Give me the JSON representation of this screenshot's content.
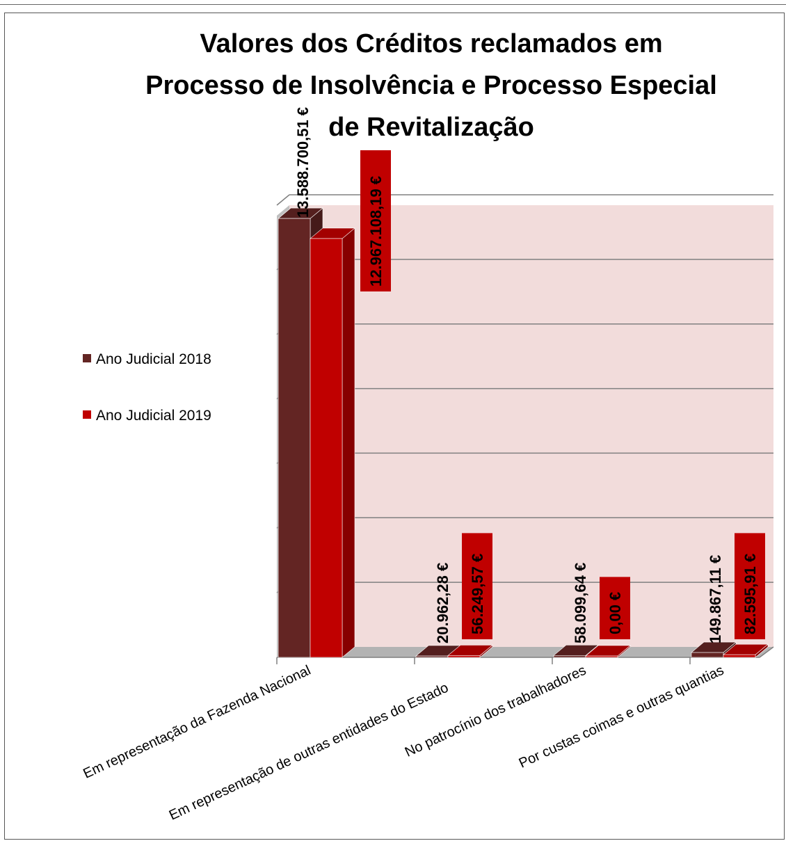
{
  "chart_data": {
    "type": "bar",
    "title_lines": [
      "Valores dos Créditos reclamados em",
      "Processo de Insolvência e Processo Especial",
      "de Revitalização"
    ],
    "categories": [
      "Em representação da Fazenda Nacional",
      "Em representação de outras entidades do Estado",
      "No patrocínio dos trabalhadores",
      "Por custas coimas e outras quantias"
    ],
    "series": [
      {
        "name": "Ano Judicial 2018",
        "color": "#632523",
        "values": [
          13588700.51,
          20962.28,
          58099.64,
          149867.11
        ],
        "labels": [
          "13.588.700,51 €",
          "20.962,28 €",
          "58.099,64 €",
          "149.867,11 €"
        ]
      },
      {
        "name": "Ano Judicial 2019",
        "color": "#c00000",
        "values": [
          12967108.19,
          56249.57,
          0.0,
          82595.91
        ],
        "labels": [
          "12.967.108,19 €",
          "56.249,57 €",
          "0,00 €",
          "82.595,91 €"
        ]
      }
    ],
    "ylim": [
      0,
      14000000
    ],
    "grid": true,
    "legend_position": "left",
    "plot_background": "#f2dcdb"
  }
}
